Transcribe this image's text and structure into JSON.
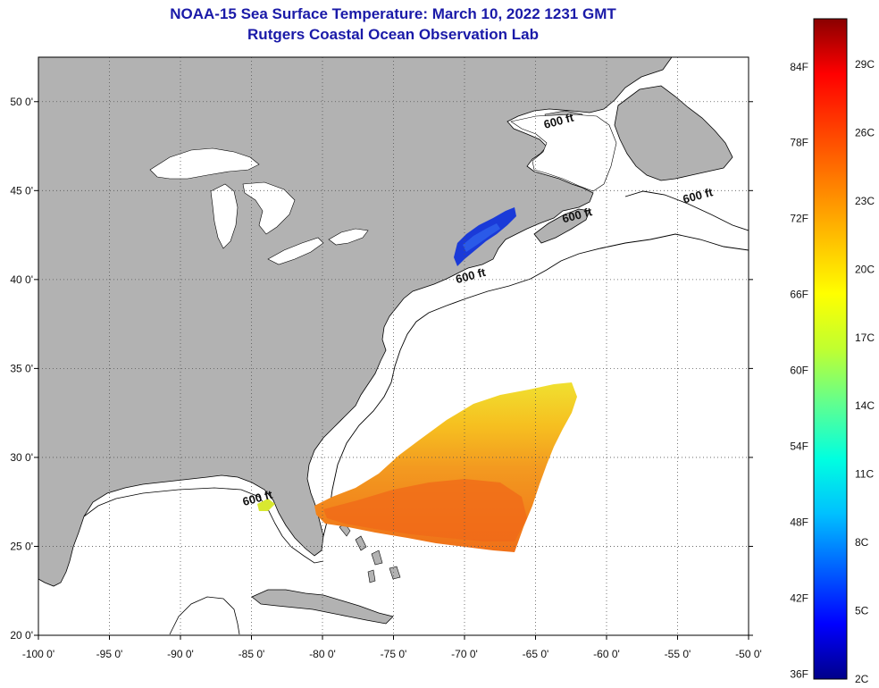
{
  "title": "NOAA-15 Sea Surface Temperature:  March 10, 2022 1231 GMT",
  "subtitle": "Rutgers Coastal Ocean Observation Lab",
  "axes": {
    "lon_range": [
      -100,
      -50
    ],
    "lat_range": [
      20,
      52.5
    ],
    "x_ticks": [
      "-100 0'",
      "-95 0'",
      "-90 0'",
      "-85 0'",
      "-80 0'",
      "-75 0'",
      "-70 0'",
      "-65 0'",
      "-60 0'",
      "-55 0'",
      "-50 0'"
    ],
    "x_tick_values": [
      -100,
      -95,
      -90,
      -85,
      -80,
      -75,
      -70,
      -65,
      -60,
      -55,
      -50
    ],
    "y_ticks": [
      "20 0'",
      "25 0'",
      "30 0'",
      "35 0'",
      "40 0'",
      "45 0'",
      "50 0'"
    ],
    "y_tick_values": [
      20,
      25,
      30,
      35,
      40,
      45,
      50
    ],
    "grid": "dotted"
  },
  "contours": {
    "depth_label": "600 ft",
    "labels": [
      {
        "text": "600 ft",
        "lon": -63.3,
        "lat": 48.7
      },
      {
        "text": "600 ft",
        "lon": -53.5,
        "lat": 44.5
      },
      {
        "text": "600 ft",
        "lon": -62.0,
        "lat": 43.4
      },
      {
        "text": "600 ft",
        "lon": -69.5,
        "lat": 40.0
      },
      {
        "text": "600 ft",
        "lon": -84.5,
        "lat": 27.5
      }
    ]
  },
  "colorbar": {
    "f_labels": [
      "84F",
      "78F",
      "72F",
      "66F",
      "60F",
      "54F",
      "48F",
      "42F",
      "36F"
    ],
    "c_labels": [
      "29C",
      "26C",
      "23C",
      "20C",
      "17C",
      "14C",
      "11C",
      "8C",
      "5C",
      "2C"
    ],
    "range_c": [
      2,
      31
    ],
    "colors": [
      "#00008a",
      "#0000ff",
      "#0060ff",
      "#00c0ff",
      "#00ffe0",
      "#60ff90",
      "#c0ff30",
      "#ffff00",
      "#ffc000",
      "#ff8000",
      "#ff4000",
      "#ff0000",
      "#8a0000"
    ]
  },
  "colors": {
    "land": "#b2b2b2",
    "ocean": "#ffffff",
    "title": "#1a1aa8",
    "cold_patch": "#1a3ad8",
    "warm_patch": "#f08a1e"
  }
}
